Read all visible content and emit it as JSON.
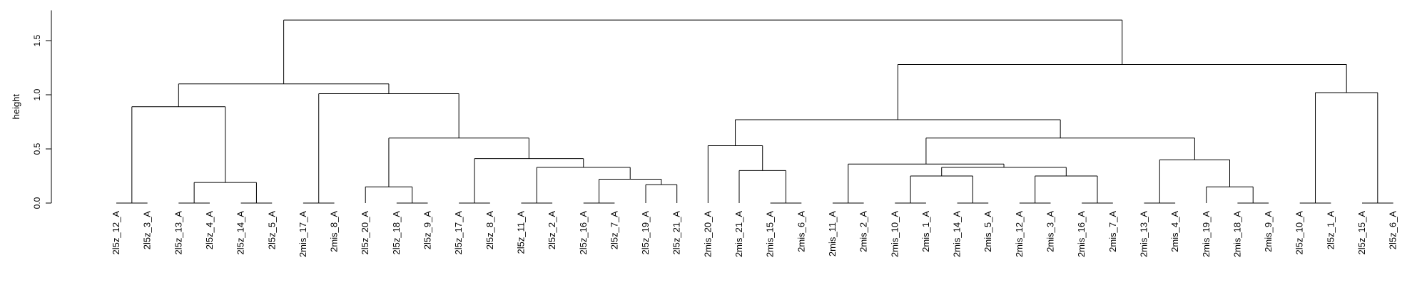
{
  "chart_data": {
    "type": "dendrogram",
    "title": "",
    "xlabel": "",
    "ylabel": "height",
    "ylim": [
      0,
      1.78
    ],
    "yticks": [
      0.0,
      0.5,
      1.0,
      1.5
    ],
    "ytick_labels": [
      "0.0",
      "0.5",
      "1.0",
      "1.5"
    ],
    "grid": false,
    "leaves": [
      "2l5z_12_A",
      "2l5z_3_A",
      "2l5z_13_A",
      "2l5z_4_A",
      "2l5z_14_A",
      "2l5z_5_A",
      "2mis_17_A",
      "2mis_8_A",
      "2l5z_20_A",
      "2l5z_18_A",
      "2l5z_9_A",
      "2l5z_17_A",
      "2l5z_8_A",
      "2l5z_11_A",
      "2l5z_2_A",
      "2l5z_16_A",
      "2l5z_7_A",
      "2l5z_19_A",
      "2l5z_21_A",
      "2mis_20_A",
      "2mis_21_A",
      "2mis_15_A",
      "2mis_6_A",
      "2mis_11_A",
      "2mis_2_A",
      "2mis_10_A",
      "2mis_1_A",
      "2mis_14_A",
      "2mis_5_A",
      "2mis_12_A",
      "2mis_3_A",
      "2mis_16_A",
      "2mis_7_A",
      "2mis_13_A",
      "2mis_4_A",
      "2mis_19_A",
      "2mis_18_A",
      "2mis_9_A",
      "2l5z_10_A",
      "2l5z_1_A",
      "2l5z_15_A",
      "2l5z_6_A"
    ],
    "merges": [
      {
        "left": "2l5z_12_A",
        "right": "2l5z_3_A",
        "height": 0.0
      },
      {
        "left": "2l5z_13_A",
        "right": "2l5z_4_A",
        "height": 0.0
      },
      {
        "left": "2l5z_14_A",
        "right": "2l5z_5_A",
        "height": 0.0
      },
      {
        "left": "2mis_17_A",
        "right": "2mis_8_A",
        "height": 0.0
      },
      {
        "left": "2l5z_18_A",
        "right": "2l5z_9_A",
        "height": 0.0
      },
      {
        "left": "2l5z_17_A",
        "right": "2l5z_8_A",
        "height": 0.0
      },
      {
        "left": "2l5z_11_A",
        "right": "2l5z_2_A",
        "height": 0.0
      },
      {
        "left": "2l5z_16_A",
        "right": "2l5z_7_A",
        "height": 0.0
      },
      {
        "left": "2mis_15_A",
        "right": "2mis_6_A",
        "height": 0.0
      },
      {
        "left": "2mis_11_A",
        "right": "2mis_2_A",
        "height": 0.0
      },
      {
        "left": "2mis_10_A",
        "right": "2mis_1_A",
        "height": 0.0
      },
      {
        "left": "2mis_14_A",
        "right": "2mis_5_A",
        "height": 0.0
      },
      {
        "left": "2mis_12_A",
        "right": "2mis_3_A",
        "height": 0.0
      },
      {
        "left": "2mis_16_A",
        "right": "2mis_7_A",
        "height": 0.0
      },
      {
        "left": "2mis_13_A",
        "right": "2mis_4_A",
        "height": 0.0
      },
      {
        "left": "2mis_18_A",
        "right": "2mis_9_A",
        "height": 0.0
      },
      {
        "left": "2l5z_10_A",
        "right": "2l5z_1_A",
        "height": 0.0
      },
      {
        "left": "2l5z_15_A",
        "right": "2l5z_6_A",
        "height": 0.0
      },
      {
        "left": "2l5z_20_A",
        "right": "(2l5z_18_A, 2l5z_9_A)",
        "height": 0.15
      },
      {
        "left": "2mis_19_A",
        "right": "(2mis_18_A, 2mis_9_A)",
        "height": 0.15
      },
      {
        "left": "2l5z_19_A",
        "right": "2l5z_21_A",
        "height": 0.17
      },
      {
        "left": "(2l5z_13_A, 2l5z_4_A)",
        "right": "(2l5z_14_A, 2l5z_5_A)",
        "height": 0.19
      },
      {
        "left": "(2l5z_16_A, 2l5z_7_A)",
        "right": "(2l5z_19_A, 2l5z_21_A)",
        "height": 0.22
      },
      {
        "left": "(2mis_10_A, 2mis_1_A)",
        "right": "(2mis_14_A, 2mis_5_A)",
        "height": 0.25
      },
      {
        "left": "(2mis_12_A, 2mis_3_A)",
        "right": "(2mis_16_A, 2mis_7_A)",
        "height": 0.25
      },
      {
        "left": "2mis_21_A",
        "right": "(2mis_15_A, 2mis_6_A)",
        "height": 0.3
      },
      {
        "left": "(2l5z_11_A, 2l5z_2_A)",
        "right": "(2l5z_16_A, ... 2l5z_21_A)",
        "height": 0.33
      },
      {
        "left": "(2mis_10_A, ... 2mis_5_A)",
        "right": "(2mis_12_A, ... 2mis_7_A)",
        "height": 0.33
      },
      {
        "left": "(2mis_11_A, 2mis_2_A)",
        "right": "(2mis_10_A, ... 2mis_7_A)",
        "height": 0.36
      },
      {
        "left": "(2mis_13_A, 2mis_4_A)",
        "right": "(2mis_19_A, 2mis_18_A, 2mis_9_A)",
        "height": 0.4
      },
      {
        "left": "(2l5z_17_A, 2l5z_8_A)",
        "right": "(2l5z_11_A, ... 2l5z_21_A)",
        "height": 0.41
      },
      {
        "left": "2mis_20_A",
        "right": "(2mis_21_A, 2mis_15_A, 2mis_6_A)",
        "height": 0.53
      },
      {
        "left": "(2l5z_20_A, 2l5z_18_A, 2l5z_9_A)",
        "right": "(2l5z_17_A, ... 2l5z_21_A)",
        "height": 0.6
      },
      {
        "left": "(2mis_11_A, ... 2mis_7_A)",
        "right": "(2mis_13_A, ... 2mis_9_A)",
        "height": 0.6
      },
      {
        "left": "(2mis_20_A, ... 2mis_6_A)",
        "right": "(2mis_11_A, ... 2mis_9_A)",
        "height": 0.77
      },
      {
        "left": "(2l5z_12_A, 2l5z_3_A)",
        "right": "(2l5z_13_A, ... 2l5z_5_A)",
        "height": 0.89
      },
      {
        "left": "(2mis_17_A, 2mis_8_A)",
        "right": "(2l5z_20_A, ... 2l5z_21_A)",
        "height": 1.01
      },
      {
        "left": "(2l5z_10_A, 2l5z_1_A)",
        "right": "(2l5z_15_A, 2l5z_6_A)",
        "height": 1.02
      },
      {
        "left": "(2l5z_12_A, ... 2l5z_5_A)",
        "right": "(2mis_17_A, ... 2l5z_21_A)",
        "height": 1.1
      },
      {
        "left": "(2mis_20_A, ... 2mis_9_A)",
        "right": "(2l5z_10_A, ... 2l5z_6_A)",
        "height": 1.28
      },
      {
        "left": "(2l5z_12_A, ... 2l5z_21_A)",
        "right": "(2mis_20_A, ... 2l5z_6_A)",
        "height": 1.69
      }
    ]
  }
}
